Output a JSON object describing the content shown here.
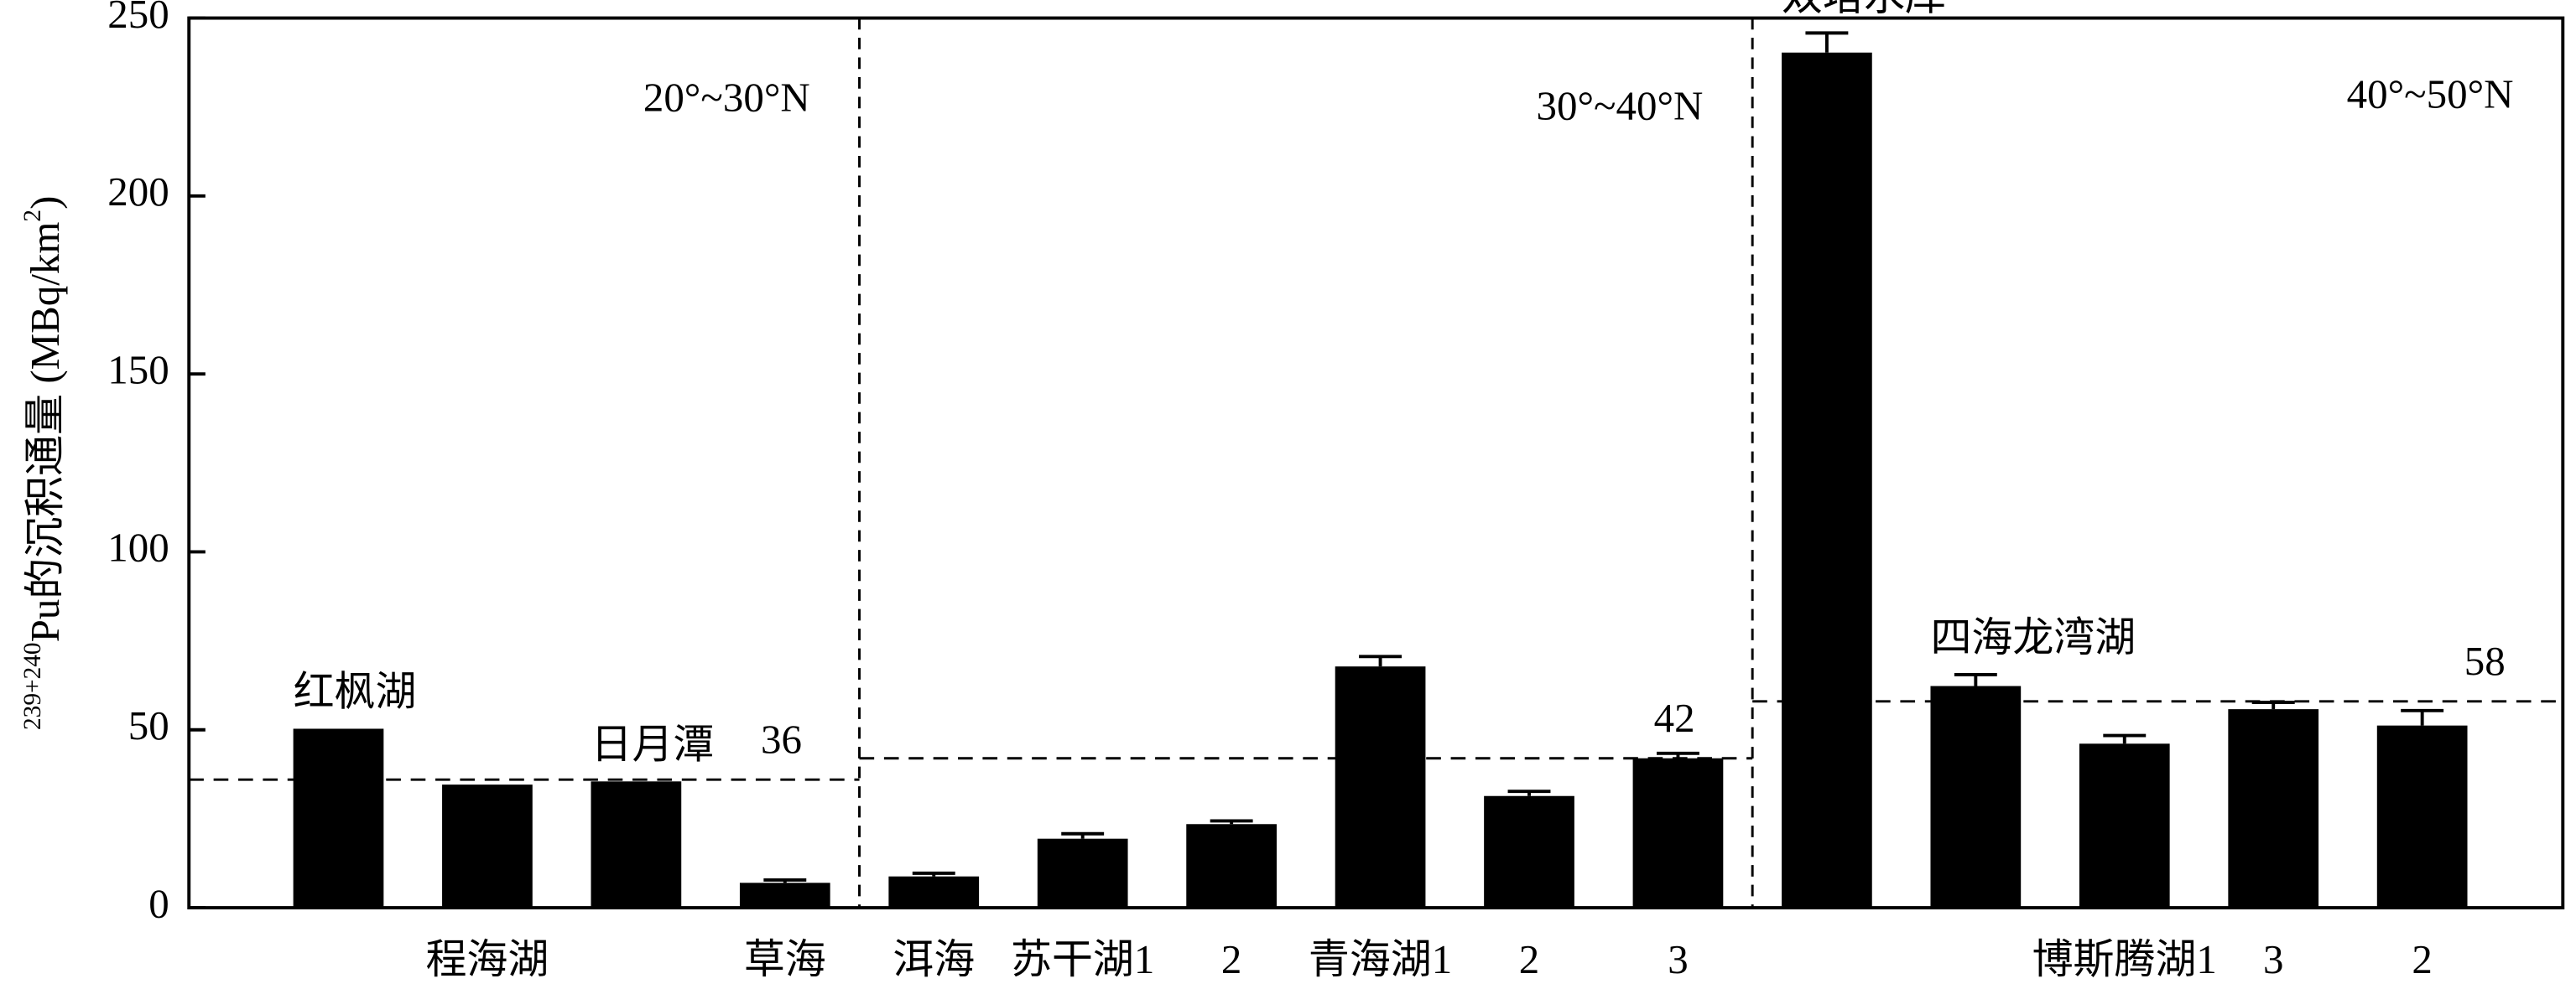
{
  "chart_data": {
    "type": "bar",
    "ylabel": [
      "239+240",
      "Pu的沉积通量 (MBq/km",
      "2",
      ")"
    ],
    "categories": [
      "红枫湖",
      "程海湖",
      "日月潭",
      "草海",
      "洱海",
      "苏干湖1",
      "2",
      "青海湖1",
      "2",
      "3",
      "双塔水库",
      "四海龙湾湖",
      "博斯腾湖1",
      "3",
      "2"
    ],
    "label_above": [
      true,
      false,
      true,
      false,
      false,
      false,
      false,
      false,
      false,
      false,
      true,
      true,
      false,
      false,
      false
    ],
    "values": [
      50.3,
      34.6,
      35.5,
      7,
      8.8,
      19.4,
      23.5,
      67.8,
      31.4,
      42,
      240.3,
      62.3,
      46.1,
      55.8,
      51.2
    ],
    "errors": [
      null,
      null,
      null,
      0.8,
      0.9,
      1.4,
      0.9,
      2.8,
      1.3,
      1.4,
      5.5,
      3.2,
      2.3,
      1.9,
      4.2
    ],
    "color": "#000000",
    "ylim": [
      0,
      250
    ],
    "yticks": [
      0,
      50,
      100,
      150,
      200,
      250
    ],
    "regions": [
      {
        "label": "20°~30°N",
        "mean": 36
      },
      {
        "label": "30°~40°N",
        "mean": 42
      },
      {
        "label": "40°~50°N",
        "mean": 58
      }
    ]
  }
}
